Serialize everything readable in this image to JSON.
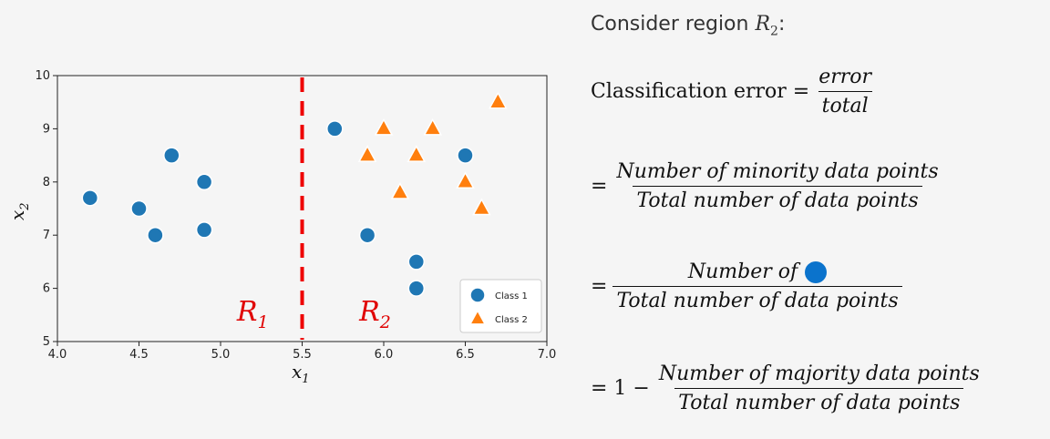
{
  "chart_data": {
    "type": "scatter",
    "xlim": [
      4.0,
      7.0
    ],
    "ylim": [
      5,
      10
    ],
    "xticks": [
      "4.0",
      "4.5",
      "5.0",
      "5.5",
      "6.0",
      "6.5",
      "7.0"
    ],
    "yticks": [
      "5",
      "6",
      "7",
      "8",
      "9",
      "10"
    ],
    "xlabel": "x",
    "xlabel_sub": "1",
    "ylabel": "x",
    "ylabel_sub": "2",
    "grid": false,
    "legend_position": "bottom-right",
    "series": [
      {
        "name": "Class 1",
        "marker": "circle",
        "color": "#1f77b4",
        "points": [
          [
            4.2,
            7.7
          ],
          [
            4.5,
            7.5
          ],
          [
            4.6,
            7.0
          ],
          [
            4.7,
            8.5
          ],
          [
            4.9,
            8.0
          ],
          [
            4.9,
            7.1
          ],
          [
            5.7,
            9.0
          ],
          [
            5.9,
            7.0
          ],
          [
            6.2,
            6.5
          ],
          [
            6.2,
            6.0
          ],
          [
            6.5,
            8.5
          ]
        ]
      },
      {
        "name": "Class 2",
        "marker": "triangle",
        "color": "#ff7f0e",
        "points": [
          [
            5.9,
            8.5
          ],
          [
            6.0,
            9.0
          ],
          [
            6.1,
            7.8
          ],
          [
            6.2,
            8.5
          ],
          [
            6.3,
            9.0
          ],
          [
            6.5,
            8.0
          ],
          [
            6.6,
            7.5
          ],
          [
            6.7,
            9.5
          ]
        ]
      }
    ],
    "split_line": {
      "x": 5.5,
      "color": "#ee0000",
      "style": "dashed"
    },
    "regions": [
      {
        "label": "R",
        "sub": "1",
        "x": 5.1,
        "y": 5.6
      },
      {
        "label": "R",
        "sub": "2",
        "x": 5.85,
        "y": 5.6
      }
    ]
  },
  "text": {
    "heading_prefix": "Consider region ",
    "heading_var": "R",
    "heading_sub": "2",
    "heading_suffix": ":",
    "eq1_lhs": "Classification error =",
    "eq1_num": "error",
    "eq1_den": "total",
    "eq2_lhs": "=",
    "eq2_num": "Number of minority data points",
    "eq2_den": "Total number of data points",
    "eq3_lhs": "=",
    "eq3_num": "Number of",
    "eq3_den": "Total number of data points",
    "eq4_lhs": "= 1 −",
    "eq4_num": "Number of majority data points",
    "eq4_den": "Total number of data points"
  },
  "colors": {
    "dot": "#0b73cc"
  }
}
